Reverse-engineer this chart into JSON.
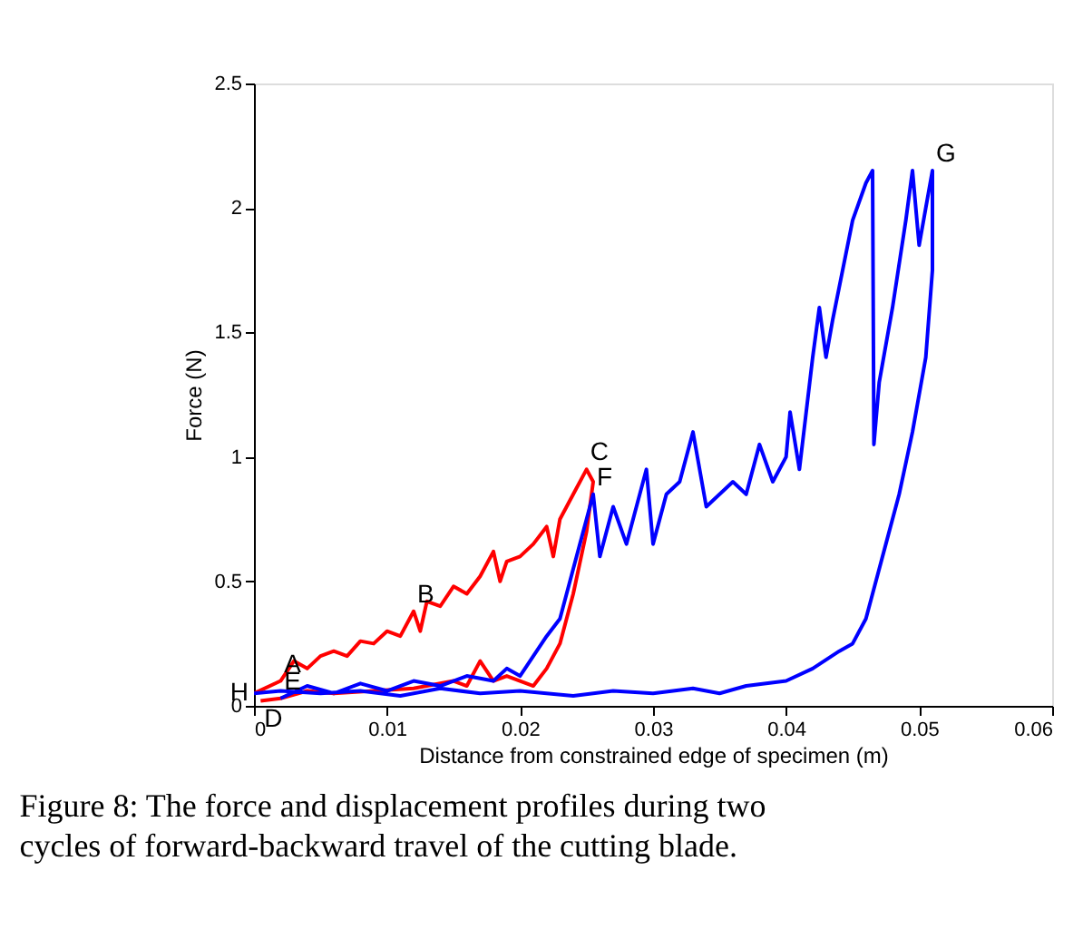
{
  "chart_data": {
    "type": "line",
    "xlabel": "Distance from constrained edge of specimen (m)",
    "ylabel": "Force (N)",
    "xlim": [
      0,
      0.06
    ],
    "xticks": [
      0,
      0.01,
      0.02,
      0.03,
      0.04,
      0.05,
      0.06
    ],
    "ylim": [
      0,
      2.5
    ],
    "yticks": [
      0,
      0.5,
      1,
      1.5,
      2,
      2.5
    ],
    "grid": false,
    "marker": "none",
    "line_style": "solid",
    "series": [
      {
        "color": "#ff0000",
        "x": [
          0,
          0.002,
          0.003,
          0.004,
          0.005,
          0.006,
          0.007,
          0.008,
          0.009,
          0.01,
          0.011,
          0.012,
          0.0125,
          0.013,
          0.014,
          0.015,
          0.016,
          0.017,
          0.018,
          0.0185,
          0.019,
          0.02,
          0.021,
          0.022,
          0.0225,
          0.023,
          0.024,
          0.025,
          0.0255,
          0.025,
          0.024,
          0.023,
          0.022,
          0.021,
          0.02,
          0.019,
          0.018,
          0.017,
          0.016,
          0.015,
          0.012,
          0.009,
          0.006,
          0.004,
          0.002,
          0.0005
        ],
        "values": [
          0.05,
          0.1,
          0.18,
          0.15,
          0.2,
          0.22,
          0.2,
          0.26,
          0.25,
          0.3,
          0.28,
          0.38,
          0.3,
          0.42,
          0.4,
          0.48,
          0.45,
          0.52,
          0.62,
          0.5,
          0.58,
          0.6,
          0.65,
          0.72,
          0.6,
          0.75,
          0.85,
          0.95,
          0.9,
          0.7,
          0.45,
          0.25,
          0.15,
          0.08,
          0.1,
          0.12,
          0.1,
          0.18,
          0.08,
          0.1,
          0.07,
          0.06,
          0.05,
          0.06,
          0.03,
          0.02
        ]
      },
      {
        "color": "#0000ff",
        "x": [
          0.002,
          0.004,
          0.006,
          0.008,
          0.01,
          0.012,
          0.014,
          0.016,
          0.018,
          0.019,
          0.02,
          0.021,
          0.022,
          0.023,
          0.024,
          0.0245,
          0.025,
          0.0255,
          0.026,
          0.027,
          0.028,
          0.0285,
          0.0295,
          0.03,
          0.031,
          0.032,
          0.033,
          0.034,
          0.035,
          0.036,
          0.037,
          0.038,
          0.039,
          0.04,
          0.0403,
          0.041,
          0.042,
          0.0425,
          0.043,
          0.0435,
          0.045,
          0.046,
          0.0465,
          0.0466,
          0.047,
          0.048,
          0.049,
          0.0495,
          0.05,
          0.0505,
          0.051,
          0.051,
          0.0505,
          0.0495,
          0.0485,
          0.0475,
          0.0465,
          0.046,
          0.045,
          0.044,
          0.042,
          0.04,
          0.037,
          0.035,
          0.033,
          0.03,
          0.027,
          0.024,
          0.02,
          0.017,
          0.014,
          0.011,
          0.008,
          0.005,
          0.002,
          0
        ],
        "values": [
          0.03,
          0.08,
          0.05,
          0.09,
          0.06,
          0.1,
          0.08,
          0.12,
          0.1,
          0.15,
          0.12,
          0.2,
          0.28,
          0.35,
          0.55,
          0.65,
          0.75,
          0.85,
          0.6,
          0.8,
          0.65,
          0.75,
          0.95,
          0.65,
          0.85,
          0.9,
          1.1,
          0.8,
          0.85,
          0.9,
          0.85,
          1.05,
          0.9,
          1.0,
          1.18,
          0.95,
          1.4,
          1.6,
          1.4,
          1.55,
          1.95,
          2.1,
          2.15,
          1.05,
          1.3,
          1.6,
          1.95,
          2.15,
          1.85,
          2.0,
          2.15,
          1.75,
          1.4,
          1.1,
          0.85,
          0.65,
          0.45,
          0.35,
          0.25,
          0.22,
          0.15,
          0.1,
          0.08,
          0.05,
          0.07,
          0.05,
          0.06,
          0.04,
          0.06,
          0.05,
          0.07,
          0.04,
          0.06,
          0.05,
          0.06,
          0.05
        ]
      }
    ],
    "annotations": [
      {
        "text": "A",
        "x": 0.002,
        "y": 0.1
      },
      {
        "text": "B",
        "x": 0.012,
        "y": 0.38
      },
      {
        "text": "C",
        "x": 0.025,
        "y": 0.95
      },
      {
        "text": "D",
        "x": 0.0005,
        "y": 0.02
      },
      {
        "text": "E",
        "x": 0.002,
        "y": 0.03
      },
      {
        "text": "F",
        "x": 0.0255,
        "y": 0.85
      },
      {
        "text": "G",
        "x": 0.051,
        "y": 2.15
      },
      {
        "text": "H",
        "x": 0,
        "y": 0.05
      },
      "Figure 8: The force and displacement profiles during two cycles of forward-backward travel of the cutting blade."
    ]
  }
}
